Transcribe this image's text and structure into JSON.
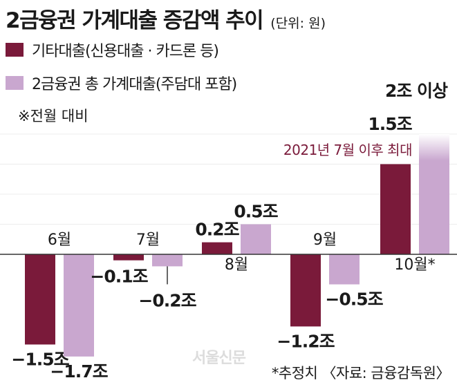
{
  "header": {
    "title": "2금융권 가계대출 증감액 추이",
    "unit": "(단위: 원)"
  },
  "legend": [
    {
      "label": "기타대출(신용대출 · 카드론 등)",
      "color": "#7a1a3a"
    },
    {
      "label": "2금융권 총 가계대출(주담대 포함)",
      "color": "#c9a7cf"
    }
  ],
  "note": "※전월 대비",
  "annotation": "2021년 7월 이후 최대",
  "annotation_color": "#7a1a3a",
  "footer": "*추정치 〈자료: 금융감독원〉",
  "watermark": "서울신문",
  "chart_data": {
    "type": "bar",
    "categories": [
      "6월",
      "7월",
      "8월",
      "9월",
      "10월*"
    ],
    "series": [
      {
        "name": "기타대출(신용대출 · 카드론 등)",
        "values": [
          -1.5,
          -0.1,
          0.2,
          -1.2,
          1.5
        ],
        "labels": [
          "−1.5조",
          "−0.1조",
          "0.2조",
          "−1.2조",
          "1.5조"
        ],
        "color": "#7a1a3a"
      },
      {
        "name": "2금융권 총 가계대출(주담대 포함)",
        "values": [
          -1.7,
          -0.2,
          0.5,
          -0.5,
          2.0
        ],
        "labels": [
          "−1.7조",
          "−0.2조",
          "0.5조",
          "−0.5조",
          "2조 이상"
        ],
        "color": "#c9a7cf"
      }
    ],
    "ylim": [
      -1.9,
      2.1
    ],
    "grid": true
  }
}
